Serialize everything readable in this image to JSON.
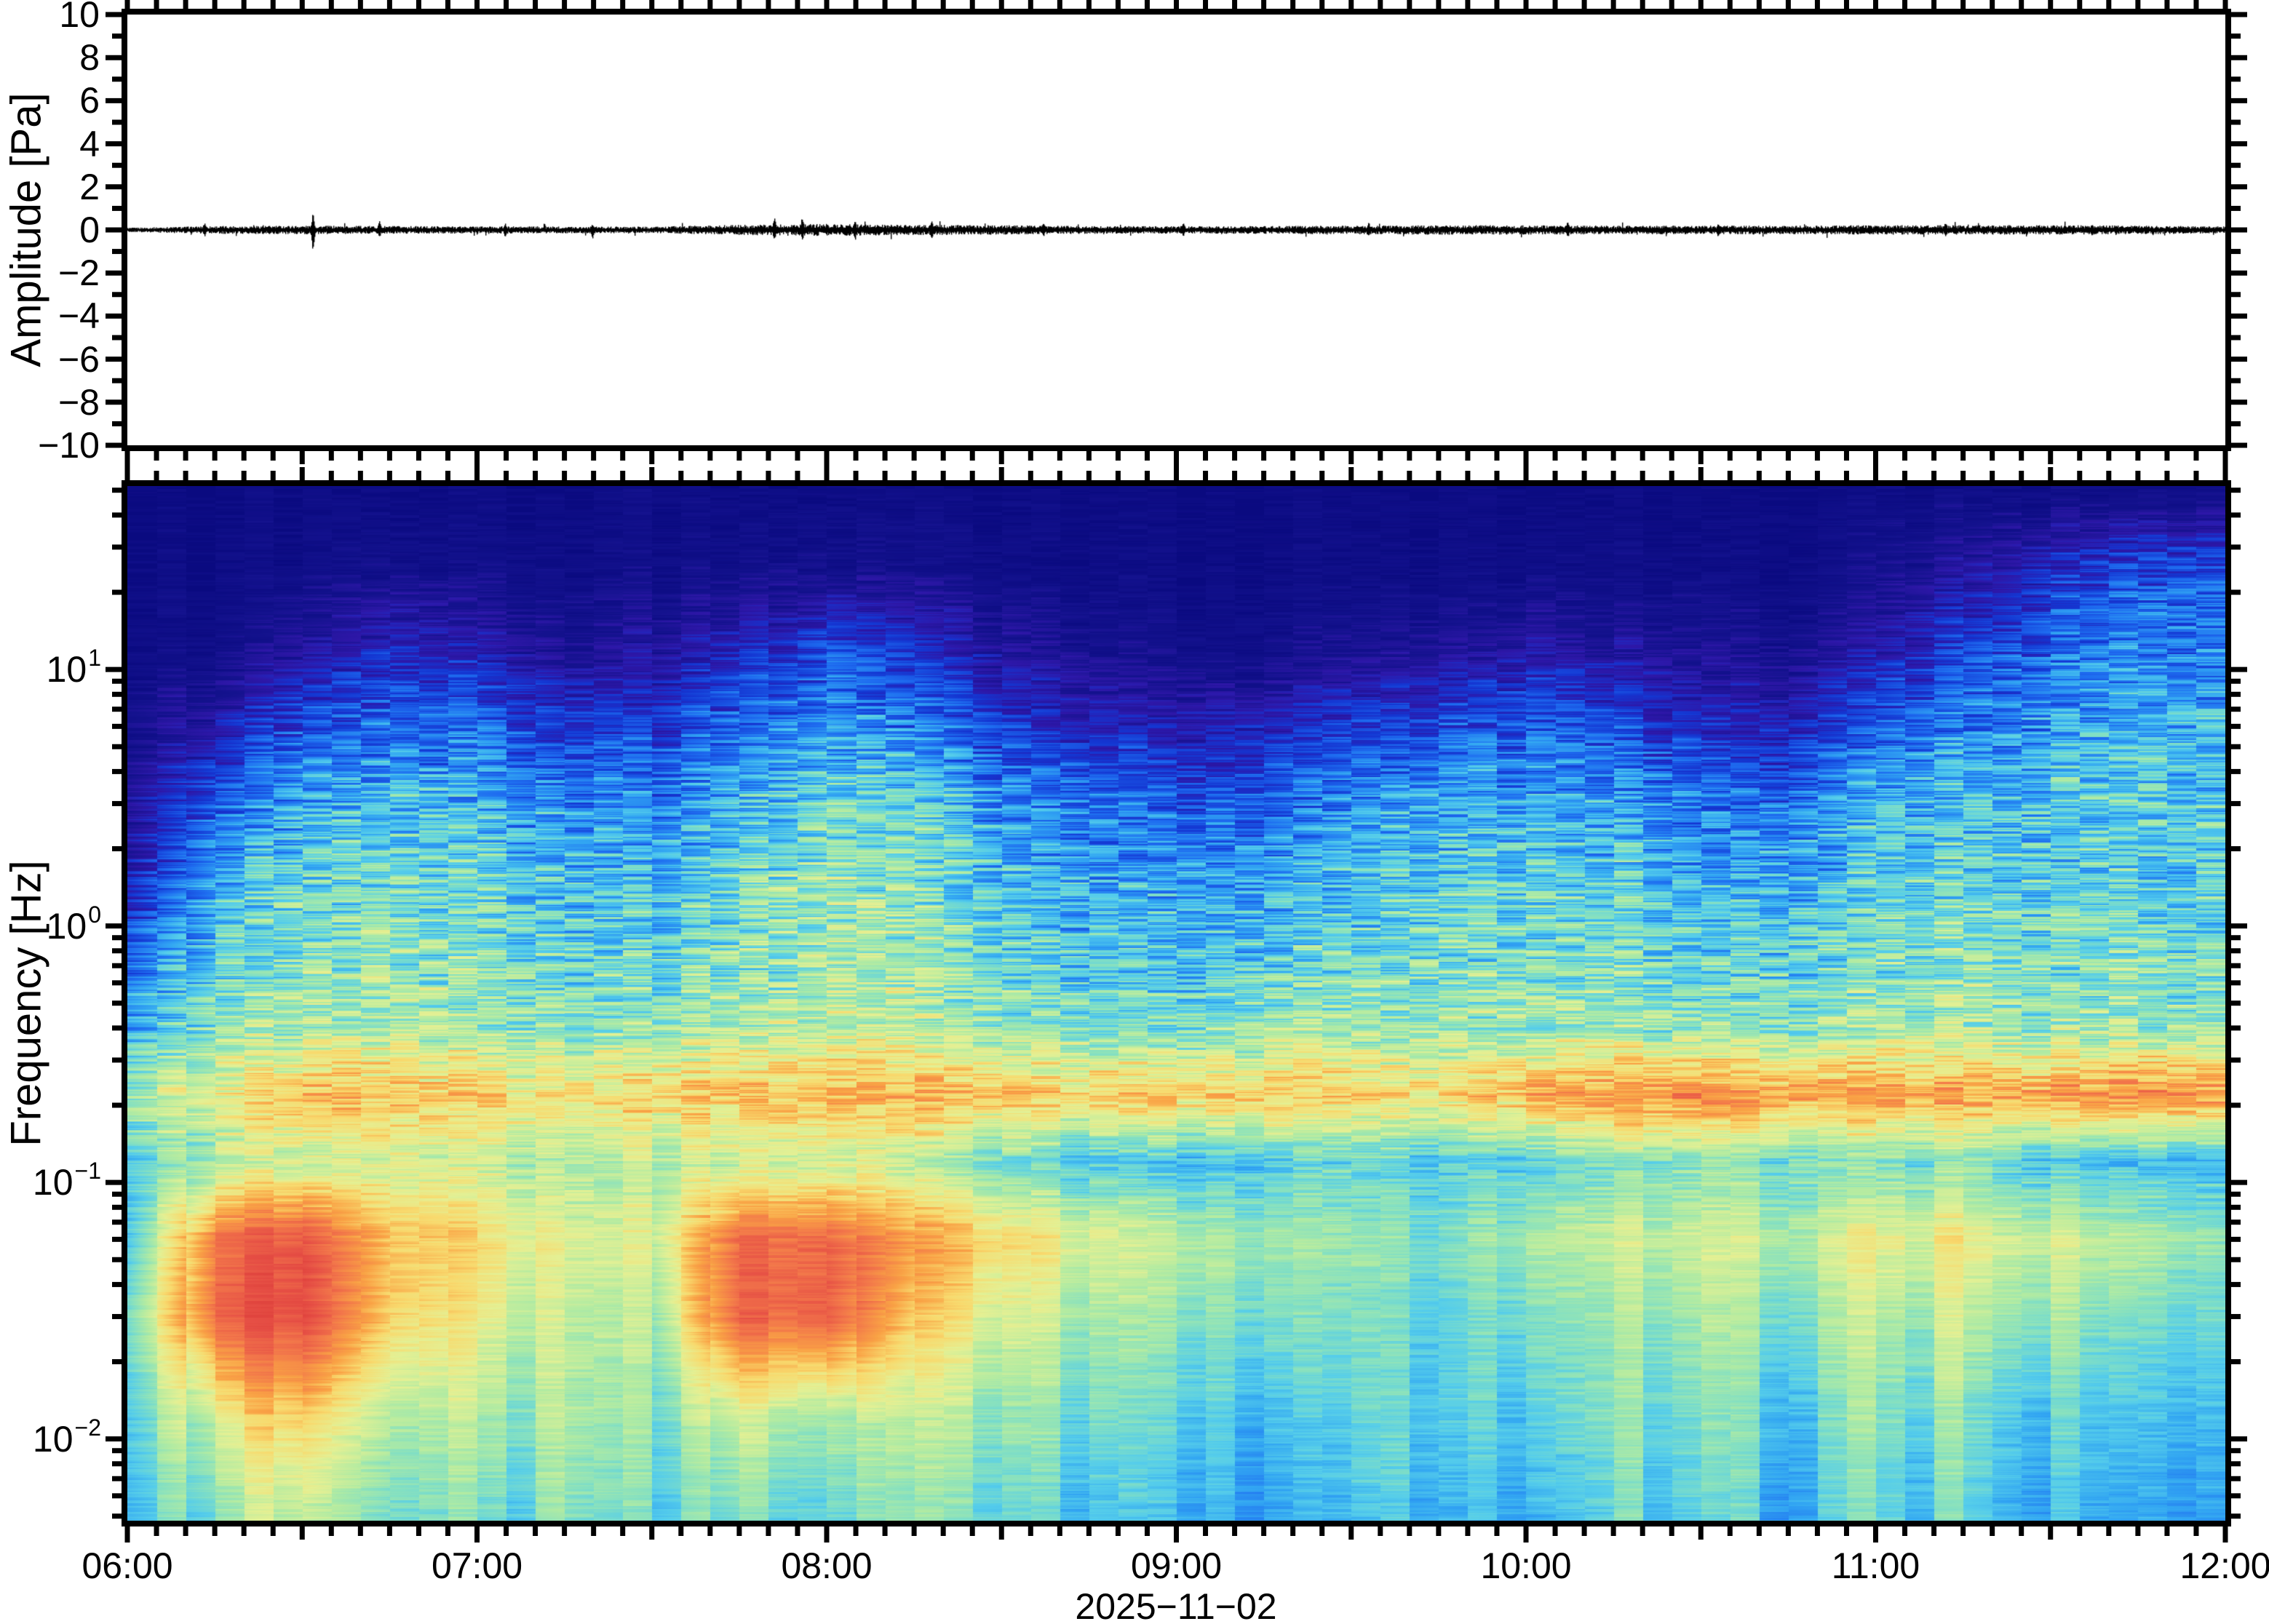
{
  "figure": {
    "background": "#ffffff",
    "frame_color": "#000000",
    "trace_color": "#000000"
  },
  "time_axis": {
    "start_hour": 6,
    "end_hour": 12,
    "hour_labels": [
      "06:00",
      "07:00",
      "08:00",
      "09:00",
      "10:00",
      "11:00",
      "12:00"
    ],
    "minor_tick_minutes": 5,
    "medium_tick_minutes": 30,
    "date_label": "2025−11−02"
  },
  "top_panel": {
    "ylabel": "Amplitude [Pa]",
    "ymin": -10,
    "ymax": 10,
    "major_step": 2,
    "minor_step": 1,
    "ytick_values": [
      10,
      8,
      6,
      4,
      2,
      0,
      -2,
      -4,
      -6,
      -8,
      -10
    ],
    "ytick_labels": [
      "10",
      "8",
      "6",
      "4",
      "2",
      "0",
      "−2",
      "−4",
      "−6",
      "−8",
      "−10"
    ]
  },
  "bottom_panel": {
    "ylabel": "Frequency [Hz]",
    "fmax_hz": 51.9,
    "fmin_hz": 0.0048,
    "decade_ticks": [
      {
        "f": 10,
        "label_base": "10",
        "label_exp": "1"
      },
      {
        "f": 1,
        "label_base": "10",
        "label_exp": "0"
      },
      {
        "f": 0.1,
        "label_base": "10",
        "label_exp": "−1"
      },
      {
        "f": 0.01,
        "label_base": "10",
        "label_exp": "−2"
      }
    ]
  },
  "chart_data": [
    {
      "type": "line",
      "name": "infrasound-waveform",
      "ylabel": "Amplitude [Pa]",
      "ylim": [
        -10,
        10
      ],
      "x_range_hours": [
        6,
        12
      ],
      "x_tick_labels": [
        "06:00",
        "07:00",
        "08:00",
        "09:00",
        "10:00",
        "11:00",
        "12:00"
      ],
      "baseline_pa": 0,
      "envelope_t_hours": [
        6.0,
        6.25,
        6.5,
        6.75,
        7.0,
        7.25,
        7.5,
        7.75,
        8.0,
        8.25,
        8.5,
        8.75,
        9.0,
        9.25,
        9.5,
        9.75,
        10.0,
        10.25,
        10.5,
        10.75,
        11.0,
        11.25,
        11.5,
        11.75,
        12.0
      ],
      "envelope_pa": [
        0.1,
        0.18,
        0.2,
        0.18,
        0.17,
        0.16,
        0.15,
        0.24,
        0.28,
        0.24,
        0.22,
        0.18,
        0.17,
        0.18,
        0.2,
        0.22,
        0.22,
        0.2,
        0.2,
        0.2,
        0.22,
        0.22,
        0.22,
        0.2,
        0.16
      ],
      "spikes": [
        {
          "t": 6.22,
          "up": 0.35,
          "dn": 0.3
        },
        {
          "t": 6.53,
          "up": 0.75,
          "dn": 0.95
        },
        {
          "t": 6.72,
          "up": 0.42,
          "dn": 0.35
        },
        {
          "t": 7.08,
          "up": 0.3,
          "dn": 0.32
        },
        {
          "t": 7.33,
          "up": 0.28,
          "dn": 0.4
        },
        {
          "t": 7.85,
          "up": 0.55,
          "dn": 0.5
        },
        {
          "t": 7.93,
          "up": 0.6,
          "dn": 0.45
        },
        {
          "t": 8.08,
          "up": 0.45,
          "dn": 0.4
        },
        {
          "t": 8.3,
          "up": 0.4,
          "dn": 0.45
        },
        {
          "t": 8.62,
          "up": 0.35,
          "dn": 0.3
        },
        {
          "t": 9.02,
          "up": 0.3,
          "dn": 0.3
        },
        {
          "t": 9.55,
          "up": 0.35,
          "dn": 0.3
        },
        {
          "t": 10.12,
          "up": 0.4,
          "dn": 0.35
        },
        {
          "t": 10.55,
          "up": 0.3,
          "dn": 0.35
        },
        {
          "t": 11.2,
          "up": 0.35,
          "dn": 0.3
        },
        {
          "t": 11.62,
          "up": 0.3,
          "dn": 0.3
        }
      ]
    },
    {
      "type": "heatmap",
      "name": "spectrogram",
      "ylabel": "Frequency [Hz]",
      "yscale": "log",
      "freq_range_hz": [
        0.0048,
        51.9
      ],
      "time_range_hours": [
        6,
        12
      ],
      "colormap": "jet-pastel",
      "value_scale": "normalized power: 0 = low (dark navy), 1 = high (red)",
      "colormap_stops": [
        [
          0.0,
          "#0a0a80"
        ],
        [
          0.08,
          "#14128e"
        ],
        [
          0.15,
          "#2e17a8"
        ],
        [
          0.22,
          "#1436d2"
        ],
        [
          0.3,
          "#1e6cf0"
        ],
        [
          0.38,
          "#32a6f2"
        ],
        [
          0.44,
          "#55cdeb"
        ],
        [
          0.5,
          "#84e0c2"
        ],
        [
          0.56,
          "#b2eba2"
        ],
        [
          0.63,
          "#e4f094"
        ],
        [
          0.7,
          "#f8da6e"
        ],
        [
          0.77,
          "#f9a245"
        ],
        [
          0.85,
          "#f2764a"
        ],
        [
          0.93,
          "#e64f45"
        ],
        [
          1.0,
          "#dc3c38"
        ]
      ],
      "row_freqs_hz": [
        50,
        25,
        12,
        6,
        3,
        1.5,
        0.8,
        0.4,
        0.22,
        0.12,
        0.06,
        0.03,
        0.012,
        0.005
      ],
      "col_times_hours": [
        6.0,
        6.25,
        6.5,
        6.75,
        7.0,
        7.25,
        7.5,
        7.75,
        8.0,
        8.25,
        8.5,
        8.75,
        9.0,
        9.25,
        9.5,
        9.75,
        10.0,
        10.25,
        10.5,
        10.75,
        11.0,
        11.25,
        11.5,
        11.75,
        12.0
      ],
      "values_norm": [
        [
          0.02,
          0.02,
          0.02,
          0.02,
          0.02,
          0.02,
          0.03,
          0.03,
          0.03,
          0.02,
          0.02,
          0.02,
          0.02,
          0.02,
          0.02,
          0.02,
          0.02,
          0.02,
          0.02,
          0.02,
          0.03,
          0.04,
          0.05,
          0.05,
          0.05
        ],
        [
          0.03,
          0.03,
          0.04,
          0.06,
          0.05,
          0.04,
          0.05,
          0.06,
          0.08,
          0.06,
          0.04,
          0.03,
          0.03,
          0.03,
          0.03,
          0.03,
          0.04,
          0.04,
          0.04,
          0.03,
          0.06,
          0.12,
          0.2,
          0.24,
          0.26
        ],
        [
          0.04,
          0.06,
          0.12,
          0.18,
          0.16,
          0.1,
          0.12,
          0.18,
          0.25,
          0.2,
          0.12,
          0.08,
          0.06,
          0.06,
          0.08,
          0.1,
          0.14,
          0.12,
          0.1,
          0.08,
          0.14,
          0.22,
          0.3,
          0.33,
          0.34
        ],
        [
          0.08,
          0.15,
          0.25,
          0.3,
          0.28,
          0.22,
          0.22,
          0.3,
          0.38,
          0.32,
          0.22,
          0.18,
          0.16,
          0.18,
          0.22,
          0.25,
          0.28,
          0.25,
          0.2,
          0.18,
          0.26,
          0.33,
          0.38,
          0.4,
          0.4
        ],
        [
          0.12,
          0.28,
          0.38,
          0.42,
          0.4,
          0.35,
          0.32,
          0.4,
          0.48,
          0.45,
          0.35,
          0.3,
          0.28,
          0.28,
          0.35,
          0.38,
          0.4,
          0.38,
          0.32,
          0.3,
          0.38,
          0.42,
          0.44,
          0.45,
          0.44
        ],
        [
          0.18,
          0.38,
          0.45,
          0.48,
          0.46,
          0.42,
          0.4,
          0.48,
          0.54,
          0.5,
          0.42,
          0.38,
          0.36,
          0.36,
          0.42,
          0.44,
          0.46,
          0.44,
          0.4,
          0.38,
          0.44,
          0.46,
          0.46,
          0.46,
          0.45
        ],
        [
          0.28,
          0.45,
          0.5,
          0.52,
          0.5,
          0.46,
          0.45,
          0.52,
          0.56,
          0.53,
          0.46,
          0.42,
          0.42,
          0.44,
          0.46,
          0.48,
          0.5,
          0.48,
          0.45,
          0.44,
          0.48,
          0.5,
          0.5,
          0.49,
          0.47
        ],
        [
          0.4,
          0.52,
          0.55,
          0.56,
          0.54,
          0.52,
          0.52,
          0.56,
          0.6,
          0.57,
          0.52,
          0.5,
          0.5,
          0.52,
          0.53,
          0.54,
          0.55,
          0.54,
          0.52,
          0.52,
          0.54,
          0.55,
          0.55,
          0.54,
          0.52
        ],
        [
          0.55,
          0.65,
          0.72,
          0.74,
          0.7,
          0.68,
          0.7,
          0.74,
          0.76,
          0.74,
          0.72,
          0.7,
          0.72,
          0.74,
          0.7,
          0.68,
          0.76,
          0.8,
          0.82,
          0.78,
          0.76,
          0.78,
          0.8,
          0.82,
          0.8
        ],
        [
          0.45,
          0.55,
          0.58,
          0.6,
          0.58,
          0.55,
          0.56,
          0.6,
          0.62,
          0.55,
          0.48,
          0.44,
          0.42,
          0.44,
          0.46,
          0.44,
          0.46,
          0.48,
          0.52,
          0.5,
          0.48,
          0.5,
          0.45,
          0.42,
          0.42
        ],
        [
          0.45,
          0.85,
          0.9,
          0.72,
          0.68,
          0.62,
          0.6,
          0.88,
          0.9,
          0.75,
          0.68,
          0.62,
          0.58,
          0.55,
          0.52,
          0.5,
          0.55,
          0.58,
          0.6,
          0.58,
          0.62,
          0.65,
          0.62,
          0.58,
          0.52
        ],
        [
          0.5,
          0.88,
          0.92,
          0.7,
          0.62,
          0.58,
          0.55,
          0.9,
          0.92,
          0.68,
          0.6,
          0.55,
          0.52,
          0.5,
          0.48,
          0.46,
          0.5,
          0.52,
          0.55,
          0.52,
          0.55,
          0.58,
          0.55,
          0.5,
          0.48
        ],
        [
          0.45,
          0.62,
          0.68,
          0.55,
          0.52,
          0.55,
          0.5,
          0.62,
          0.58,
          0.52,
          0.5,
          0.48,
          0.45,
          0.42,
          0.44,
          0.46,
          0.45,
          0.48,
          0.5,
          0.46,
          0.48,
          0.5,
          0.46,
          0.44,
          0.42
        ],
        [
          0.42,
          0.5,
          0.55,
          0.48,
          0.45,
          0.5,
          0.46,
          0.52,
          0.5,
          0.46,
          0.44,
          0.42,
          0.4,
          0.38,
          0.4,
          0.42,
          0.4,
          0.44,
          0.46,
          0.42,
          0.44,
          0.46,
          0.42,
          0.4,
          0.38
        ]
      ]
    }
  ]
}
